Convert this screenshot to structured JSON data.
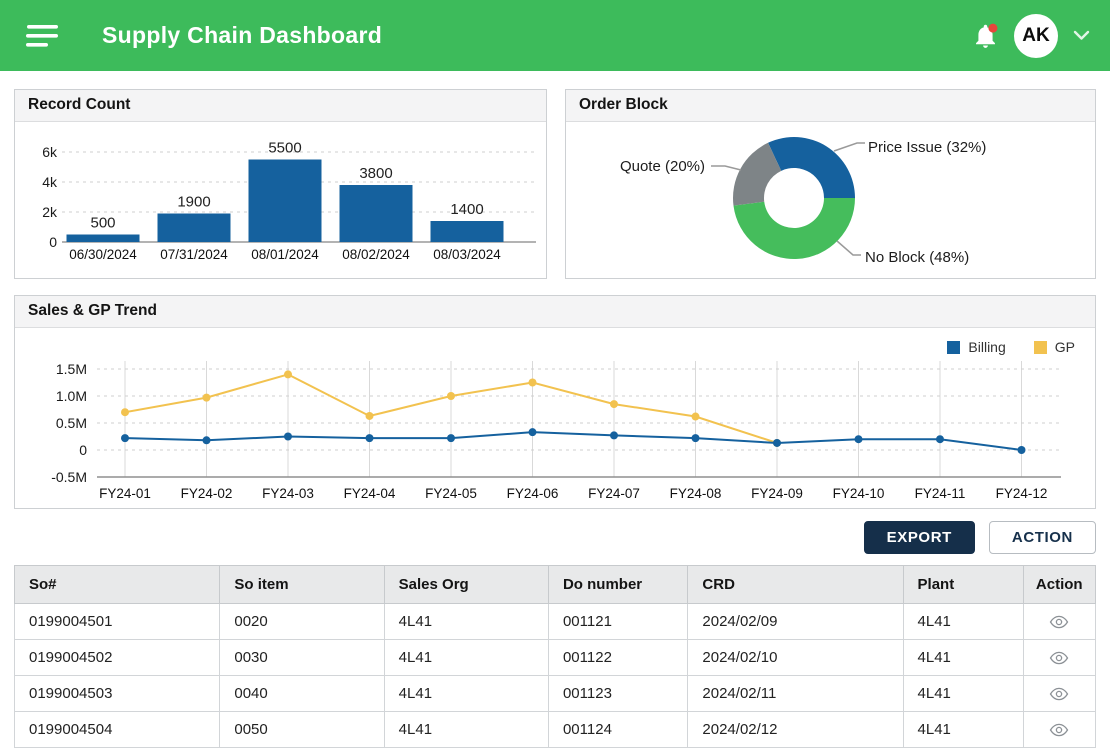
{
  "header": {
    "title": "Supply Chain Dashboard",
    "avatar_initials": "AK",
    "notification_alert_color": "#E8453C",
    "header_color": "#3DBB5B"
  },
  "panels": {
    "record_count": {
      "title": "Record Count"
    },
    "order_block": {
      "title": "Order Block"
    },
    "sales_gp": {
      "title": "Sales & GP Trend"
    }
  },
  "chart_data": [
    {
      "id": "record_count",
      "type": "bar",
      "title": "Record Count",
      "categories": [
        "06/30/2024",
        "07/31/2024",
        "08/01/2024",
        "08/02/2024",
        "08/03/2024"
      ],
      "values": [
        500,
        1900,
        5500,
        3800,
        1400
      ],
      "ylim": [
        0,
        6000
      ],
      "yticks": [
        0,
        2000,
        4000,
        6000
      ],
      "ytick_labels": [
        "0",
        "2k",
        "4k",
        "6k"
      ],
      "bar_color": "#15619E",
      "grid": "dashed-horizontal",
      "data_labels": true
    },
    {
      "id": "order_block",
      "type": "pie",
      "title": "Order Block",
      "donut": true,
      "start_angle_deg": -25.2,
      "slices": [
        {
          "label": "Price Issue",
          "pct": 32,
          "color": "#15619E",
          "display": "Price Issue (32%)"
        },
        {
          "label": "No Block",
          "pct": 48,
          "color": "#45BD5C",
          "display": "No Block (48%)"
        },
        {
          "label": "Quote",
          "pct": 20,
          "color": "#7E8487",
          "display": "Quote (20%)"
        }
      ]
    },
    {
      "id": "sales_gp",
      "type": "line",
      "title": "Sales & GP Trend",
      "x": [
        "FY24-01",
        "FY24-02",
        "FY24-03",
        "FY24-04",
        "FY24-05",
        "FY24-06",
        "FY24-07",
        "FY24-08",
        "FY24-09",
        "FY24-10",
        "FY24-11",
        "FY24-12"
      ],
      "series": [
        {
          "name": "Billing",
          "color": "#15619E",
          "values": [
            0.22,
            0.18,
            0.25,
            0.22,
            0.22,
            0.33,
            0.27,
            0.22,
            0.13,
            0.2,
            0.2,
            0.0
          ]
        },
        {
          "name": "GP",
          "color": "#F2C24F",
          "values": [
            0.7,
            0.97,
            1.4,
            0.63,
            1.0,
            1.25,
            0.85,
            0.62,
            0.13,
            null,
            null,
            null
          ]
        }
      ],
      "ylim": [
        -0.5,
        1.5
      ],
      "yticks": [
        -0.5,
        0,
        0.5,
        1.0,
        1.5
      ],
      "ytick_labels": [
        "-0.5M",
        "0",
        "0.5M",
        "1.0M",
        "1.5M"
      ],
      "unit": "M",
      "legend_position": "top-right",
      "grid": "dashed-horizontal-solid-vertical"
    }
  ],
  "actions": {
    "export_label": "EXPORT",
    "action_label": "ACTION"
  },
  "table": {
    "columns": [
      "So#",
      "So item",
      "Sales Org",
      "Do number",
      "CRD",
      "Plant",
      "Action"
    ],
    "rows": [
      [
        "0199004501",
        "0020",
        "4L41",
        "001121",
        "2024/02/09",
        "4L41"
      ],
      [
        "0199004502",
        "0030",
        "4L41",
        "001122",
        "2024/02/10",
        "4L41"
      ],
      [
        "0199004503",
        "0040",
        "4L41",
        "001123",
        "2024/02/11",
        "4L41"
      ],
      [
        "0199004504",
        "0050",
        "4L41",
        "001124",
        "2024/02/12",
        "4L41"
      ]
    ],
    "row_action_icon": "eye-icon"
  },
  "icons": {
    "menu": "hamburger-menu-icon",
    "notifications": "bell-icon",
    "account": "chevron-down-icon",
    "row_action": "eye-icon"
  }
}
